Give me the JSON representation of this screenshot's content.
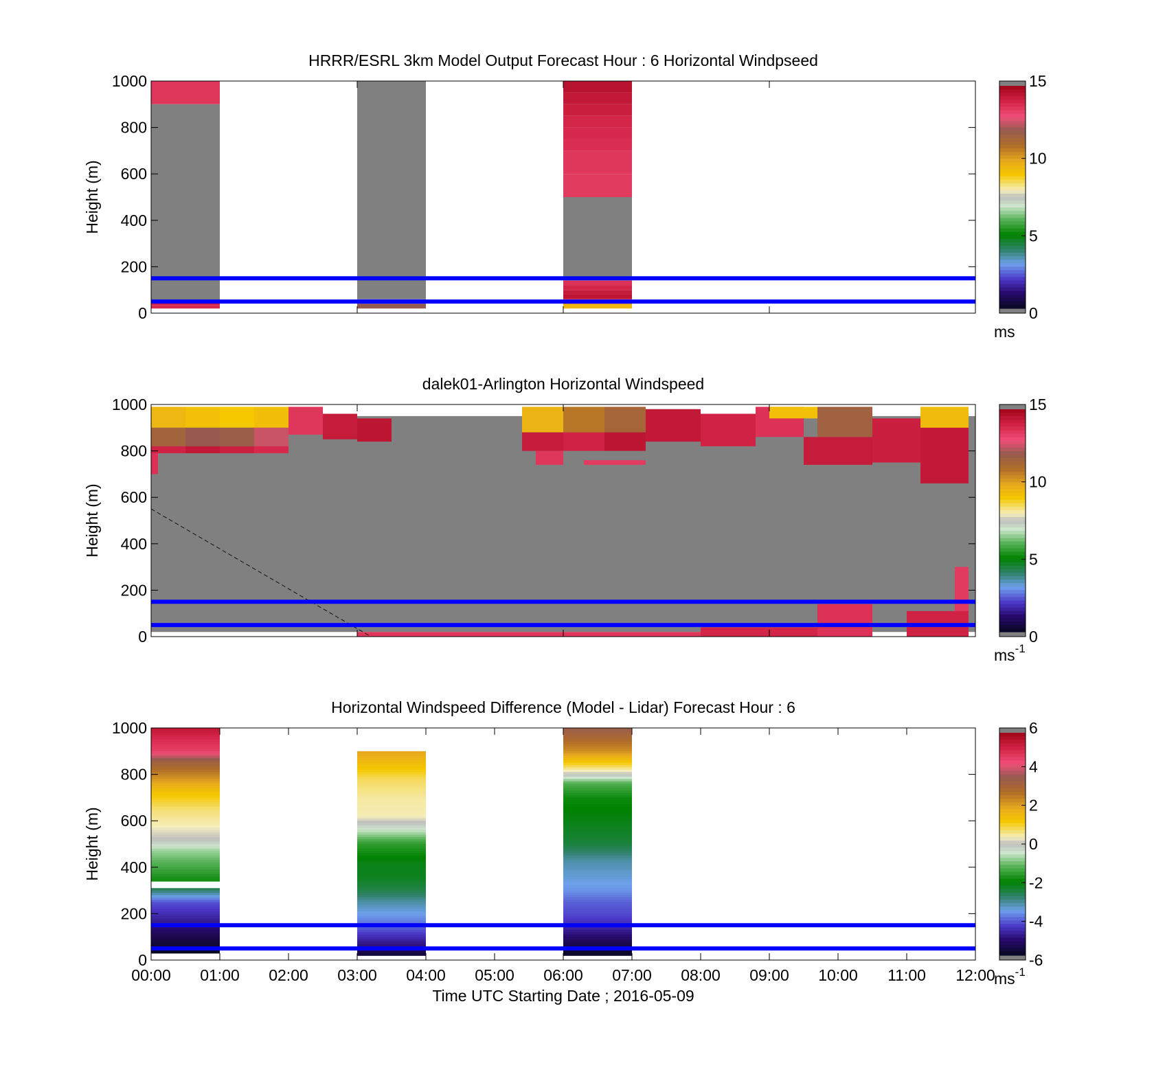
{
  "chart_data": [
    {
      "type": "heatmap",
      "title": "HRRR/ESRL 3km Model Output   Forecast Hour : 6 Horizontal Windpseed",
      "xlabel": "",
      "ylabel": "Height (m)",
      "xlim": [
        0,
        12
      ],
      "ylim": [
        0,
        1000
      ],
      "yticks": [
        "0",
        "200",
        "400",
        "600",
        "800",
        "1000"
      ],
      "colorbar": {
        "ticks": [
          "0",
          "5",
          "10",
          "15"
        ],
        "range": [
          0,
          15
        ],
        "unit": "ms",
        "unit_exp": ""
      },
      "reference_lines_m": [
        50,
        150
      ],
      "reference_line_color": "#0000ff",
      "background_fill": "#808080",
      "cells": [
        {
          "t0": 0,
          "t1": 1,
          "h0": 900,
          "h1": 1000,
          "v": 13.5
        },
        {
          "t0": 0,
          "t1": 1,
          "h0": 50,
          "h1": 900,
          "v": 15.5
        },
        {
          "t0": 0,
          "t1": 1,
          "h0": 35,
          "h1": 50,
          "v": 14
        },
        {
          "t0": 0,
          "t1": 1,
          "h0": 20,
          "h1": 35,
          "v": 13.8
        },
        {
          "t0": 3,
          "t1": 4,
          "h0": 60,
          "h1": 1000,
          "v": 15.5
        },
        {
          "t0": 3,
          "t1": 4,
          "h0": 40,
          "h1": 60,
          "v": 2.5
        },
        {
          "t0": 3,
          "t1": 4,
          "h0": 20,
          "h1": 40,
          "v": 12
        },
        {
          "t0": 6,
          "t1": 7,
          "h0": 950,
          "h1": 1000,
          "v": 14.5
        },
        {
          "t0": 6,
          "t1": 7,
          "h0": 900,
          "h1": 950,
          "v": 14.3
        },
        {
          "t0": 6,
          "t1": 7,
          "h0": 850,
          "h1": 900,
          "v": 14.1
        },
        {
          "t0": 6,
          "t1": 7,
          "h0": 800,
          "h1": 850,
          "v": 13.9
        },
        {
          "t0": 6,
          "t1": 7,
          "h0": 750,
          "h1": 800,
          "v": 13.8
        },
        {
          "t0": 6,
          "t1": 7,
          "h0": 700,
          "h1": 750,
          "v": 13.7
        },
        {
          "t0": 6,
          "t1": 7,
          "h0": 600,
          "h1": 700,
          "v": 13.5
        },
        {
          "t0": 6,
          "t1": 7,
          "h0": 500,
          "h1": 600,
          "v": 13.4
        },
        {
          "t0": 6,
          "t1": 7,
          "h0": 140,
          "h1": 500,
          "v": 15.5
        },
        {
          "t0": 6,
          "t1": 7,
          "h0": 120,
          "h1": 140,
          "v": 13.6
        },
        {
          "t0": 6,
          "t1": 7,
          "h0": 100,
          "h1": 120,
          "v": 13.9
        },
        {
          "t0": 6,
          "t1": 7,
          "h0": 80,
          "h1": 100,
          "v": 14.2
        },
        {
          "t0": 6,
          "t1": 7,
          "h0": 60,
          "h1": 80,
          "v": 14.4
        },
        {
          "t0": 6,
          "t1": 7,
          "h0": 40,
          "h1": 60,
          "v": 12.5
        },
        {
          "t0": 6,
          "t1": 7,
          "h0": 20,
          "h1": 40,
          "v": 9.5
        }
      ]
    },
    {
      "type": "heatmap",
      "title": "dalek01-Arlington  Horizontal Windspeed",
      "xlabel": "",
      "ylabel": "Height (m)",
      "xlim": [
        0,
        12
      ],
      "ylim": [
        0,
        1000
      ],
      "yticks": [
        "0",
        "200",
        "400",
        "600",
        "800",
        "1000"
      ],
      "colorbar": {
        "ticks": [
          "0",
          "5",
          "10",
          "15"
        ],
        "range": [
          0,
          15
        ],
        "unit": "ms",
        "unit_exp": "-1"
      },
      "reference_lines_m": [
        50,
        150
      ],
      "reference_line_color": "#0000ff",
      "overlay_dashed_line": {
        "from": [
          0,
          550
        ],
        "to": [
          3.2,
          0
        ]
      },
      "background_fill": "#808080",
      "description_note": "",
      "cells": [
        {
          "t0": 0,
          "t1": 12,
          "h0": 20,
          "h1": 950,
          "v": 15.5
        },
        {
          "t0": 0,
          "t1": 0.5,
          "h0": 900,
          "h1": 990,
          "v": 9.5
        },
        {
          "t0": 0.5,
          "t1": 1.0,
          "h0": 900,
          "h1": 990,
          "v": 9.2
        },
        {
          "t0": 1.0,
          "t1": 1.5,
          "h0": 900,
          "h1": 990,
          "v": 9.0
        },
        {
          "t0": 1.5,
          "t1": 2.0,
          "h0": 900,
          "h1": 990,
          "v": 9.3
        },
        {
          "t0": 0,
          "t1": 0.5,
          "h0": 820,
          "h1": 900,
          "v": 11.5
        },
        {
          "t0": 0.5,
          "t1": 1.0,
          "h0": 820,
          "h1": 900,
          "v": 12.0
        },
        {
          "t0": 1.0,
          "t1": 1.5,
          "h0": 820,
          "h1": 900,
          "v": 11.8
        },
        {
          "t0": 1.5,
          "t1": 2.0,
          "h0": 820,
          "h1": 900,
          "v": 12.5
        },
        {
          "t0": 2.0,
          "t1": 2.5,
          "h0": 870,
          "h1": 990,
          "v": 13.5
        },
        {
          "t0": 2.5,
          "t1": 3.0,
          "h0": 850,
          "h1": 960,
          "v": 14.2
        },
        {
          "t0": 3.0,
          "t1": 3.5,
          "h0": 840,
          "h1": 940,
          "v": 14.4
        },
        {
          "t0": 0,
          "t1": 0.5,
          "h0": 790,
          "h1": 820,
          "v": 14.0
        },
        {
          "t0": 0.5,
          "t1": 1.0,
          "h0": 790,
          "h1": 820,
          "v": 14.3
        },
        {
          "t0": 1.0,
          "t1": 1.5,
          "h0": 790,
          "h1": 820,
          "v": 14.1
        },
        {
          "t0": 1.5,
          "t1": 2.0,
          "h0": 790,
          "h1": 820,
          "v": 13.8
        },
        {
          "t0": 0,
          "t1": 0.1,
          "h0": 700,
          "h1": 790,
          "v": 13.6
        },
        {
          "t0": 5.4,
          "t1": 6.0,
          "h0": 880,
          "h1": 990,
          "v": 9.6
        },
        {
          "t0": 6.0,
          "t1": 6.6,
          "h0": 880,
          "h1": 990,
          "v": 10.8
        },
        {
          "t0": 6.6,
          "t1": 7.2,
          "h0": 880,
          "h1": 990,
          "v": 11.4
        },
        {
          "t0": 5.4,
          "t1": 6.0,
          "h0": 800,
          "h1": 880,
          "v": 14.2
        },
        {
          "t0": 6.0,
          "t1": 6.6,
          "h0": 800,
          "h1": 880,
          "v": 14.0
        },
        {
          "t0": 6.6,
          "t1": 7.2,
          "h0": 800,
          "h1": 880,
          "v": 14.4
        },
        {
          "t0": 5.6,
          "t1": 6.0,
          "h0": 740,
          "h1": 800,
          "v": 13.5
        },
        {
          "t0": 6.3,
          "t1": 7.2,
          "h0": 740,
          "h1": 760,
          "v": 13.4
        },
        {
          "t0": 7.2,
          "t1": 8.0,
          "h0": 840,
          "h1": 980,
          "v": 14.3
        },
        {
          "t0": 8.0,
          "t1": 8.8,
          "h0": 820,
          "h1": 960,
          "v": 14.0
        },
        {
          "t0": 8.8,
          "t1": 9.5,
          "h0": 860,
          "h1": 990,
          "v": 13.6
        },
        {
          "t0": 9.0,
          "t1": 9.7,
          "h0": 940,
          "h1": 990,
          "v": 9.2
        },
        {
          "t0": 9.7,
          "t1": 10.5,
          "h0": 860,
          "h1": 990,
          "v": 11.6
        },
        {
          "t0": 10.5,
          "t1": 11.2,
          "h0": 750,
          "h1": 940,
          "v": 14.1
        },
        {
          "t0": 11.2,
          "t1": 11.9,
          "h0": 660,
          "h1": 940,
          "v": 14.3
        },
        {
          "t0": 11.2,
          "t1": 11.9,
          "h0": 900,
          "h1": 990,
          "v": 9.4
        },
        {
          "t0": 9.5,
          "t1": 10.5,
          "h0": 740,
          "h1": 860,
          "v": 14.2
        },
        {
          "t0": 11.7,
          "t1": 11.9,
          "h0": 0,
          "h1": 300,
          "v": 13.4
        },
        {
          "t0": 11.0,
          "t1": 11.9,
          "h0": 0,
          "h1": 110,
          "v": 14.0
        },
        {
          "t0": 9.7,
          "t1": 10.5,
          "h0": 0,
          "h1": 140,
          "v": 13.6
        },
        {
          "t0": 8.0,
          "t1": 9.7,
          "h0": 0,
          "h1": 40,
          "v": 13.9
        },
        {
          "t0": 3.0,
          "t1": 8.0,
          "h0": 0,
          "h1": 20,
          "v": 13.5
        }
      ]
    },
    {
      "type": "heatmap",
      "title": "Horizontal Windspeed Difference (Model - Lidar) Forecast Hour : 6",
      "xlabel": "Time UTC  Starting Date ; 2016-05-09",
      "ylabel": "Height (m)",
      "xlim": [
        0,
        12
      ],
      "ylim": [
        0,
        1000
      ],
      "xticks": [
        "00:00",
        "01:00",
        "02:00",
        "03:00",
        "04:00",
        "05:00",
        "06:00",
        "07:00",
        "08:00",
        "09:00",
        "10:00",
        "11:00",
        "12:00"
      ],
      "yticks": [
        "0",
        "200",
        "400",
        "600",
        "800",
        "1000"
      ],
      "colorbar": {
        "ticks": [
          "-6",
          "-4",
          "-2",
          "0",
          "2",
          "4",
          "6"
        ],
        "range": [
          -6,
          6
        ],
        "unit": "ms",
        "unit_exp": "-1"
      },
      "reference_lines_m": [
        50,
        150
      ],
      "reference_line_color": "#0000ff",
      "profiles": [
        {
          "t0": 0,
          "t1": 1,
          "top": 1000,
          "bottom": 30,
          "gap": [
            310,
            340
          ],
          "stops": [
            [
              1000,
              5.5
            ],
            [
              950,
              5.0
            ],
            [
              900,
              4.6
            ],
            [
              850,
              3.2
            ],
            [
              800,
              2.5
            ],
            [
              720,
              1.3
            ],
            [
              650,
              0.7
            ],
            [
              580,
              0.4
            ],
            [
              520,
              0.0
            ],
            [
              470,
              -0.8
            ],
            [
              400,
              -1.4
            ],
            [
              340,
              -1.9
            ],
            [
              310,
              -2.6
            ],
            [
              280,
              -3.4
            ],
            [
              250,
              -4.2
            ],
            [
              200,
              -4.6
            ],
            [
              150,
              -5.0
            ],
            [
              100,
              -5.5
            ],
            [
              40,
              -6.0
            ]
          ]
        },
        {
          "t0": 3,
          "t1": 4,
          "top": 900,
          "bottom": 20,
          "stops": [
            [
              900,
              2.0
            ],
            [
              850,
              1.5
            ],
            [
              780,
              0.8
            ],
            [
              700,
              0.5
            ],
            [
              620,
              0.4
            ],
            [
              560,
              -0.5
            ],
            [
              500,
              -1.6
            ],
            [
              420,
              -2.2
            ],
            [
              350,
              -2.3
            ],
            [
              300,
              -2.6
            ],
            [
              250,
              -3.2
            ],
            [
              200,
              -3.6
            ],
            [
              150,
              -4.0
            ],
            [
              100,
              -4.6
            ],
            [
              50,
              -5.2
            ],
            [
              20,
              -5.8
            ]
          ]
        },
        {
          "t0": 6,
          "t1": 7,
          "top": 1000,
          "bottom": 20,
          "stops": [
            [
              1000,
              3.5
            ],
            [
              950,
              2.9
            ],
            [
              900,
              2.3
            ],
            [
              850,
              1.2
            ],
            [
              800,
              0.0
            ],
            [
              760,
              -1.3
            ],
            [
              700,
              -1.9
            ],
            [
              600,
              -2.2
            ],
            [
              500,
              -2.5
            ],
            [
              430,
              -3.2
            ],
            [
              380,
              -3.4
            ],
            [
              300,
              -3.7
            ],
            [
              250,
              -4.1
            ],
            [
              200,
              -4.3
            ],
            [
              150,
              -4.6
            ],
            [
              100,
              -5.2
            ],
            [
              50,
              -5.7
            ],
            [
              30,
              -5.9
            ]
          ]
        }
      ]
    }
  ]
}
